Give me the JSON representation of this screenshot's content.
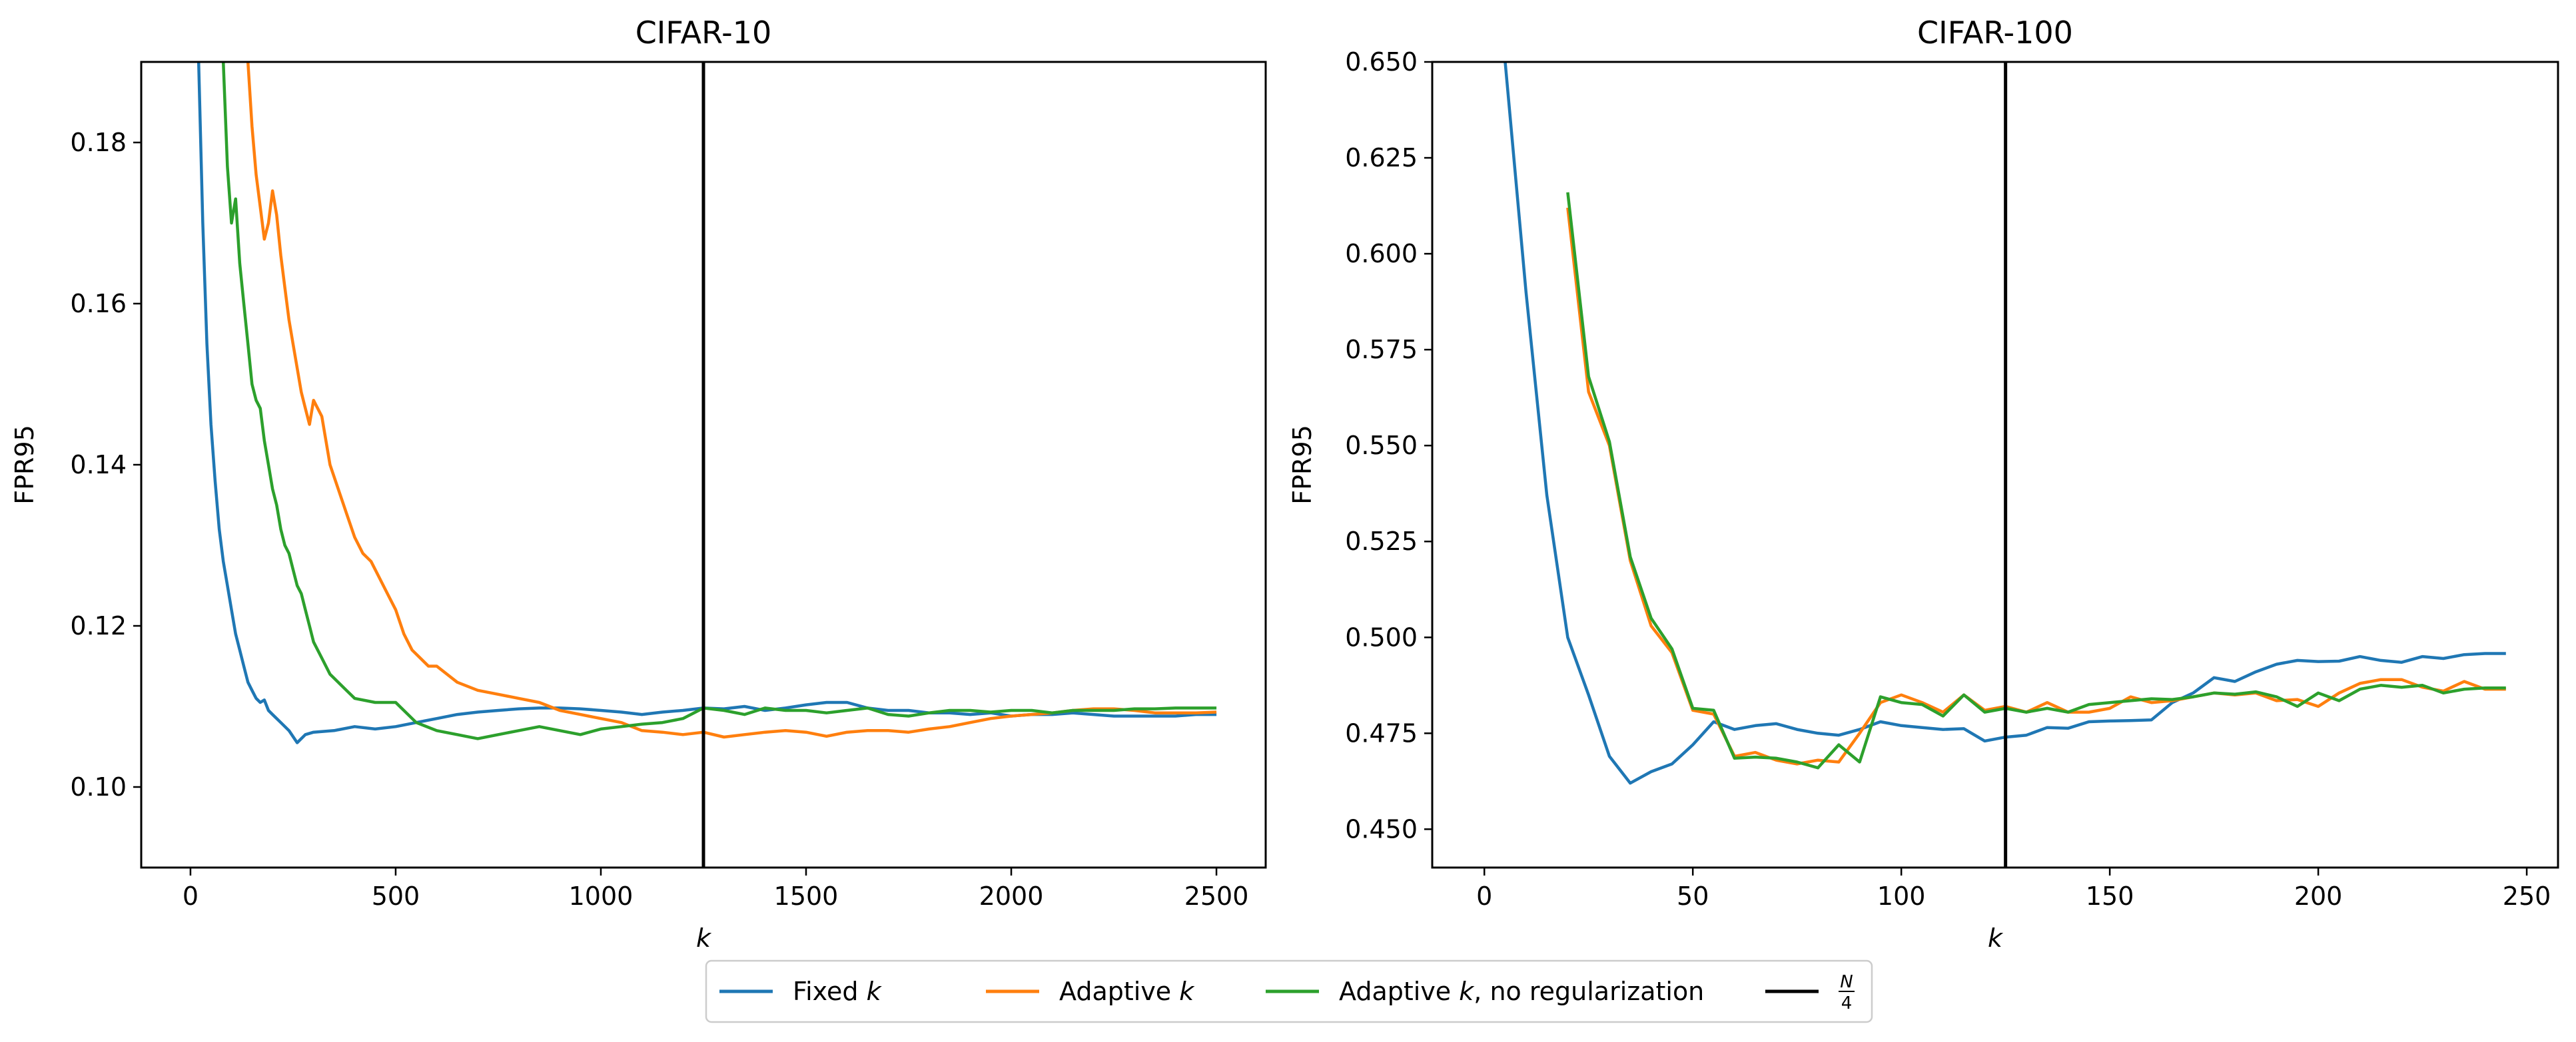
{
  "chart_data": [
    {
      "type": "line",
      "title": "CIFAR-10",
      "xlabel": "k",
      "ylabel": "FPR95",
      "xlim": [
        -120,
        2620
      ],
      "ylim": [
        0.09,
        0.19
      ],
      "xticks": [
        0,
        500,
        1000,
        1500,
        2000,
        2500
      ],
      "xtick_labels": [
        "0",
        "500",
        "1000",
        "1500",
        "2000",
        "2500"
      ],
      "yticks": [
        0.1,
        0.12,
        0.14,
        0.16,
        0.18
      ],
      "ytick_labels": [
        "0.10",
        "0.12",
        "0.14",
        "0.16",
        "0.18"
      ],
      "vline": 1250,
      "grid": false,
      "series": [
        {
          "name": "Fixed k",
          "color": "#1f77b4",
          "x": [
            20,
            30,
            40,
            50,
            60,
            70,
            80,
            90,
            100,
            110,
            120,
            130,
            140,
            150,
            160,
            170,
            180,
            190,
            200,
            220,
            240,
            260,
            280,
            300,
            350,
            400,
            450,
            500,
            550,
            600,
            650,
            700,
            750,
            800,
            850,
            900,
            950,
            1000,
            1050,
            1100,
            1150,
            1200,
            1250,
            1300,
            1350,
            1400,
            1450,
            1500,
            1550,
            1600,
            1650,
            1700,
            1750,
            1800,
            1850,
            1900,
            1950,
            2000,
            2050,
            2100,
            2150,
            2200,
            2250,
            2300,
            2350,
            2400,
            2450,
            2500
          ],
          "y": [
            0.19,
            0.17,
            0.155,
            0.145,
            0.138,
            0.132,
            0.128,
            0.125,
            0.122,
            0.119,
            0.117,
            0.115,
            0.113,
            0.112,
            0.111,
            0.1105,
            0.1108,
            0.1095,
            0.109,
            0.108,
            0.107,
            0.1055,
            0.1065,
            0.1068,
            0.107,
            0.1075,
            0.1072,
            0.1075,
            0.108,
            0.1085,
            0.109,
            0.1093,
            0.1095,
            0.1097,
            0.1098,
            0.1098,
            0.1097,
            0.1095,
            0.1093,
            0.109,
            0.1093,
            0.1095,
            0.1098,
            0.1097,
            0.11,
            0.1095,
            0.1098,
            0.1102,
            0.1105,
            0.1105,
            0.1098,
            0.1095,
            0.1095,
            0.1092,
            0.1092,
            0.109,
            0.1092,
            0.1088,
            0.109,
            0.109,
            0.1092,
            0.109,
            0.1088,
            0.1088,
            0.1088,
            0.1088,
            0.109,
            0.109
          ]
        },
        {
          "name": "Adaptive k",
          "color": "#ff7f0e",
          "x": [
            140,
            150,
            160,
            170,
            180,
            190,
            200,
            210,
            220,
            230,
            240,
            250,
            260,
            270,
            280,
            290,
            300,
            320,
            340,
            360,
            380,
            400,
            420,
            440,
            460,
            480,
            500,
            520,
            540,
            560,
            580,
            600,
            650,
            700,
            750,
            800,
            850,
            900,
            950,
            1000,
            1050,
            1100,
            1150,
            1200,
            1250,
            1300,
            1350,
            1400,
            1450,
            1500,
            1550,
            1600,
            1650,
            1700,
            1750,
            1800,
            1850,
            1900,
            1950,
            2000,
            2050,
            2100,
            2150,
            2200,
            2250,
            2300,
            2350,
            2400,
            2450,
            2500
          ],
          "y": [
            0.19,
            0.182,
            0.176,
            0.172,
            0.168,
            0.17,
            0.174,
            0.171,
            0.166,
            0.162,
            0.158,
            0.155,
            0.152,
            0.149,
            0.147,
            0.145,
            0.148,
            0.146,
            0.14,
            0.137,
            0.134,
            0.131,
            0.129,
            0.128,
            0.126,
            0.124,
            0.122,
            0.119,
            0.117,
            0.116,
            0.115,
            0.115,
            0.113,
            0.112,
            0.1115,
            0.111,
            0.1105,
            0.1095,
            0.109,
            0.1085,
            0.108,
            0.107,
            0.1068,
            0.1065,
            0.1068,
            0.1062,
            0.1065,
            0.1068,
            0.107,
            0.1068,
            0.1063,
            0.1068,
            0.107,
            0.107,
            0.1068,
            0.1072,
            0.1075,
            0.108,
            0.1085,
            0.1088,
            0.109,
            0.1092,
            0.1095,
            0.1097,
            0.1097,
            0.1095,
            0.1092,
            0.1092,
            0.1092,
            0.1093
          ]
        },
        {
          "name": "Adaptive k, no regularization",
          "color": "#2ca02c",
          "x": [
            80,
            90,
            100,
            110,
            120,
            130,
            140,
            150,
            160,
            170,
            180,
            190,
            200,
            210,
            220,
            230,
            240,
            250,
            260,
            270,
            280,
            290,
            300,
            320,
            340,
            360,
            380,
            400,
            450,
            500,
            550,
            600,
            650,
            700,
            750,
            800,
            850,
            900,
            950,
            1000,
            1050,
            1100,
            1150,
            1200,
            1250,
            1300,
            1350,
            1400,
            1450,
            1500,
            1550,
            1600,
            1650,
            1700,
            1750,
            1800,
            1850,
            1900,
            1950,
            2000,
            2050,
            2100,
            2150,
            2200,
            2250,
            2300,
            2350,
            2400,
            2450,
            2500
          ],
          "y": [
            0.19,
            0.177,
            0.17,
            0.173,
            0.165,
            0.16,
            0.155,
            0.15,
            0.148,
            0.147,
            0.143,
            0.14,
            0.137,
            0.135,
            0.132,
            0.13,
            0.129,
            0.127,
            0.125,
            0.124,
            0.122,
            0.12,
            0.118,
            0.116,
            0.114,
            0.113,
            0.112,
            0.111,
            0.1105,
            0.1105,
            0.108,
            0.107,
            0.1065,
            0.106,
            0.1065,
            0.107,
            0.1075,
            0.107,
            0.1065,
            0.1072,
            0.1075,
            0.1078,
            0.108,
            0.1085,
            0.1098,
            0.1095,
            0.109,
            0.1098,
            0.1095,
            0.1095,
            0.1092,
            0.1095,
            0.1098,
            0.109,
            0.1088,
            0.1092,
            0.1095,
            0.1095,
            0.1093,
            0.1095,
            0.1095,
            0.1092,
            0.1095,
            0.1095,
            0.1095,
            0.1097,
            0.1097,
            0.1098,
            0.1098,
            0.1098
          ]
        }
      ]
    },
    {
      "type": "line",
      "title": "CIFAR-100",
      "xlabel": "k",
      "ylabel": "FPR95",
      "xlim": [
        -12.5,
        257.5
      ],
      "ylim": [
        0.44,
        0.65
      ],
      "xticks": [
        0,
        50,
        100,
        150,
        200,
        250
      ],
      "xtick_labels": [
        "0",
        "50",
        "100",
        "150",
        "200",
        "250"
      ],
      "yticks": [
        0.45,
        0.475,
        0.5,
        0.525,
        0.55,
        0.575,
        0.6,
        0.625,
        0.65
      ],
      "ytick_labels": [
        "0.450",
        "0.475",
        "0.500",
        "0.525",
        "0.550",
        "0.575",
        "0.600",
        "0.625",
        "0.650"
      ],
      "vline": 125,
      "grid": false,
      "series": [
        {
          "name": "Fixed k",
          "color": "#1f77b4",
          "x": [
            5,
            10,
            15,
            20,
            25,
            30,
            35,
            40,
            45,
            50,
            55,
            60,
            65,
            70,
            75,
            80,
            85,
            90,
            95,
            100,
            105,
            110,
            115,
            120,
            125,
            130,
            135,
            140,
            145,
            150,
            155,
            160,
            165,
            170,
            175,
            180,
            185,
            190,
            195,
            200,
            205,
            210,
            215,
            220,
            225,
            230,
            235,
            240,
            245
          ],
          "y": [
            0.65,
            0.59,
            0.537,
            0.5,
            0.485,
            0.469,
            0.462,
            0.465,
            0.467,
            0.472,
            0.478,
            0.476,
            0.477,
            0.4775,
            0.476,
            0.475,
            0.4745,
            0.476,
            0.478,
            0.477,
            0.4765,
            0.476,
            0.4762,
            0.473,
            0.474,
            0.4745,
            0.4765,
            0.4763,
            0.478,
            0.4782,
            0.4783,
            0.4785,
            0.483,
            0.4855,
            0.4895,
            0.4885,
            0.491,
            0.493,
            0.494,
            0.4937,
            0.4938,
            0.495,
            0.494,
            0.4935,
            0.495,
            0.4945,
            0.4955,
            0.4958,
            0.4958
          ]
        },
        {
          "name": "Adaptive k",
          "color": "#ff7f0e",
          "x": [
            20,
            25,
            30,
            35,
            40,
            45,
            50,
            55,
            60,
            65,
            70,
            75,
            80,
            85,
            90,
            95,
            100,
            105,
            110,
            115,
            120,
            125,
            130,
            135,
            140,
            145,
            150,
            155,
            160,
            165,
            170,
            175,
            180,
            185,
            190,
            195,
            200,
            205,
            210,
            215,
            220,
            225,
            230,
            235,
            240,
            245
          ],
          "y": [
            0.612,
            0.564,
            0.55,
            0.52,
            0.503,
            0.496,
            0.481,
            0.48,
            0.469,
            0.47,
            0.468,
            0.467,
            0.468,
            0.4675,
            0.475,
            0.483,
            0.485,
            0.483,
            0.4805,
            0.485,
            0.481,
            0.482,
            0.4805,
            0.483,
            0.4805,
            0.4805,
            0.4815,
            0.4845,
            0.483,
            0.4835,
            0.4845,
            0.4855,
            0.485,
            0.4855,
            0.4835,
            0.4838,
            0.482,
            0.4855,
            0.488,
            0.489,
            0.489,
            0.487,
            0.486,
            0.4885,
            0.4865,
            0.4865
          ]
        },
        {
          "name": "Adaptive k, no regularization",
          "color": "#2ca02c",
          "x": [
            20,
            25,
            30,
            35,
            40,
            45,
            50,
            55,
            60,
            65,
            70,
            75,
            80,
            85,
            90,
            95,
            100,
            105,
            110,
            115,
            120,
            125,
            130,
            135,
            140,
            145,
            150,
            155,
            160,
            165,
            170,
            175,
            180,
            185,
            190,
            195,
            200,
            205,
            210,
            215,
            220,
            225,
            230,
            235,
            240,
            245
          ],
          "y": [
            0.616,
            0.568,
            0.551,
            0.521,
            0.505,
            0.497,
            0.4815,
            0.481,
            0.4685,
            0.4688,
            0.4685,
            0.4675,
            0.466,
            0.472,
            0.4675,
            0.4845,
            0.483,
            0.4825,
            0.4795,
            0.485,
            0.4805,
            0.4815,
            0.4805,
            0.4815,
            0.4805,
            0.4825,
            0.483,
            0.4835,
            0.484,
            0.4838,
            0.4845,
            0.4855,
            0.4852,
            0.4858,
            0.4845,
            0.482,
            0.4855,
            0.4835,
            0.4865,
            0.4875,
            0.487,
            0.4875,
            0.4855,
            0.4865,
            0.4868,
            0.4868
          ]
        }
      ]
    }
  ],
  "legend": {
    "placement": "bottom-center",
    "entries": [
      {
        "label": "Fixed",
        "var": "k",
        "suffix": "",
        "color": "#1f77b4"
      },
      {
        "label": "Adaptive",
        "var": "k",
        "suffix": "",
        "color": "#ff7f0e"
      },
      {
        "label": "Adaptive",
        "var": "k",
        "suffix": ", no regularization",
        "color": "#2ca02c"
      },
      {
        "label": "N/4",
        "var": "",
        "suffix": "",
        "color": "#000000"
      }
    ]
  }
}
